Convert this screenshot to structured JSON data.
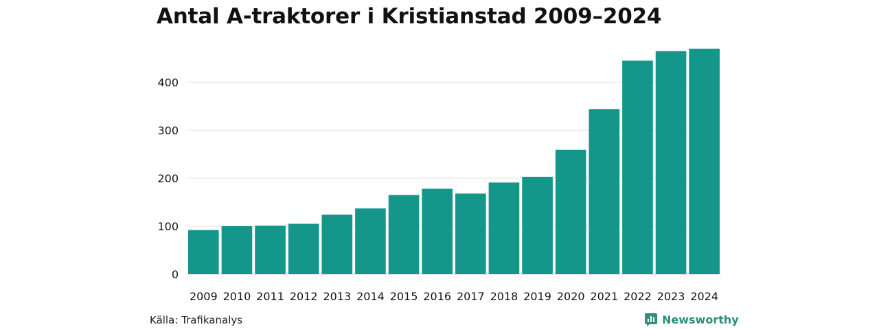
{
  "chart_data": {
    "type": "bar",
    "title": "Antal A-traktorer i Kristianstad 2009–2024",
    "xlabel": "",
    "ylabel": "",
    "categories": [
      "2009",
      "2010",
      "2011",
      "2012",
      "2013",
      "2014",
      "2015",
      "2016",
      "2017",
      "2018",
      "2019",
      "2020",
      "2021",
      "2022",
      "2023",
      "2024"
    ],
    "values": [
      92,
      100,
      101,
      105,
      124,
      137,
      165,
      178,
      168,
      191,
      203,
      259,
      344,
      445,
      465,
      470
    ],
    "ylim": [
      0,
      480
    ],
    "yticks": [
      0,
      100,
      200,
      300,
      400
    ],
    "grid": true,
    "bar_color": "#14968a"
  },
  "footer": {
    "source": "Källa: Trafikanalys",
    "brand": "Newsworthy",
    "brand_icon": "bar-chart-icon",
    "brand_color": "#2f8f7c"
  }
}
